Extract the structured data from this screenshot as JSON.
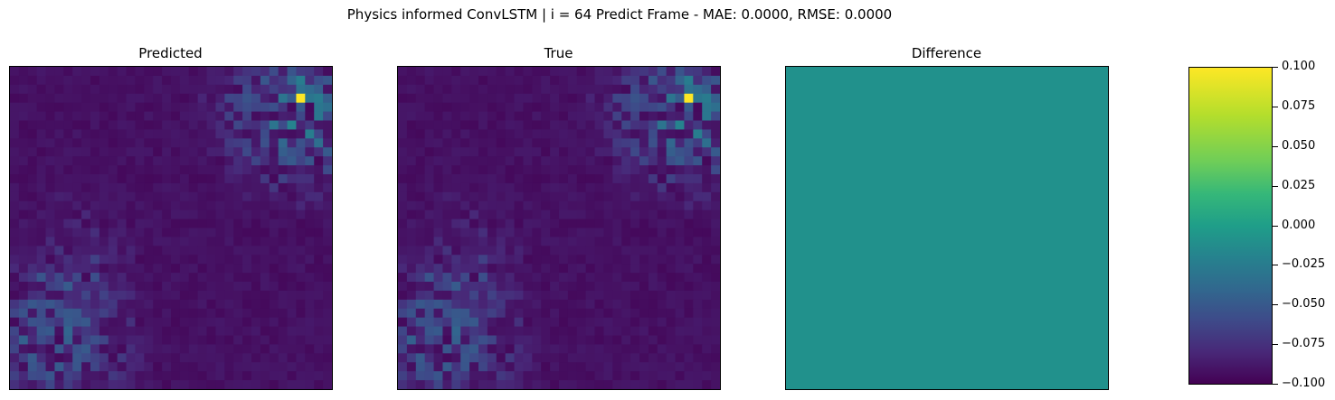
{
  "figure": {
    "suptitle": "Physics informed ConvLSTM | i = 64 Predict Frame - MAE: 0.0000, RMSE: 0.0000"
  },
  "panels": [
    {
      "title": "Predicted"
    },
    {
      "title": "True"
    },
    {
      "title": "Difference"
    }
  ],
  "colors": {
    "colormap": "viridis",
    "difference_fill": "#21918c"
  },
  "chart_data": {
    "type": "heatmap",
    "title": "Physics informed ConvLSTM | i = 64 Predict Frame - MAE: 0.0000, RMSE: 0.0000",
    "panels": [
      "Predicted",
      "True",
      "Difference"
    ],
    "grid_size": [
      36,
      36
    ],
    "difference_value": 0.0,
    "colorbar": {
      "vmin": -0.1,
      "vmax": 0.1,
      "ticks": [
        0.1,
        0.075,
        0.05,
        0.025,
        0.0,
        -0.025,
        -0.05,
        -0.075,
        -0.1
      ],
      "tick_labels": [
        "0.100",
        "0.075",
        "0.050",
        "0.025",
        "0.000",
        "−0.025",
        "−0.050",
        "−0.075",
        "−0.100"
      ]
    }
  }
}
